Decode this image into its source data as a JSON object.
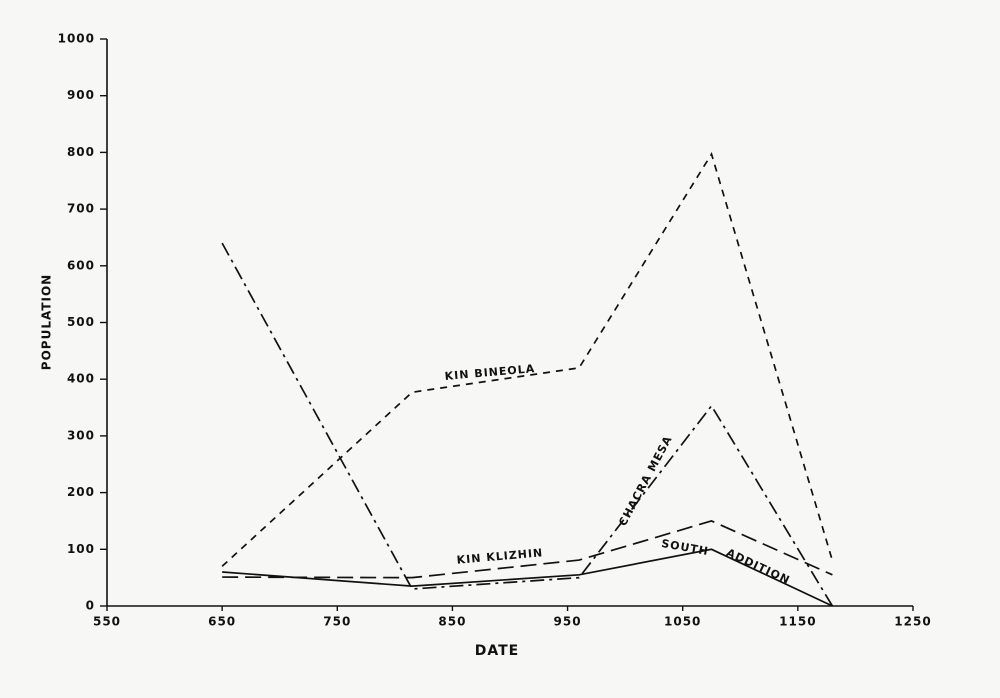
{
  "chart_data": {
    "type": "line",
    "xlabel": "DATE",
    "ylabel": "POPULATION",
    "xlim": [
      550,
      1250
    ],
    "xticks": [
      550,
      650,
      750,
      850,
      950,
      1050,
      1150,
      1250
    ],
    "ylim": [
      0,
      1000
    ],
    "yticks": [
      0,
      100,
      200,
      300,
      400,
      500,
      600,
      700,
      800,
      900,
      1000
    ],
    "series": [
      {
        "labels": [
          "KIN BINEOLA"
        ],
        "color": "#111111",
        "dash": "7 6",
        "x": [
          650,
          815,
          960,
          1075,
          1180
        ],
        "values": [
          70,
          377,
          420,
          797,
          80
        ]
      },
      {
        "labels": [
          "CHACRA MESA"
        ],
        "color": "#111111",
        "dash": "14 5 3 5",
        "x": [
          650,
          815,
          960,
          1075,
          1180
        ],
        "values": [
          640,
          30,
          50,
          353,
          0
        ]
      },
      {
        "labels": [
          "KIN KLIZHIN"
        ],
        "color": "#111111",
        "dash": "16 7",
        "x": [
          650,
          815,
          960,
          1075,
          1180
        ],
        "values": [
          51,
          50,
          81,
          150,
          55
        ]
      },
      {
        "labels": [
          "SOUTH",
          "ADDITION"
        ],
        "color": "#111111",
        "dash": "none",
        "x": [
          650,
          815,
          960,
          1075,
          1180
        ],
        "values": [
          60,
          35,
          55,
          100,
          0
        ]
      }
    ]
  }
}
